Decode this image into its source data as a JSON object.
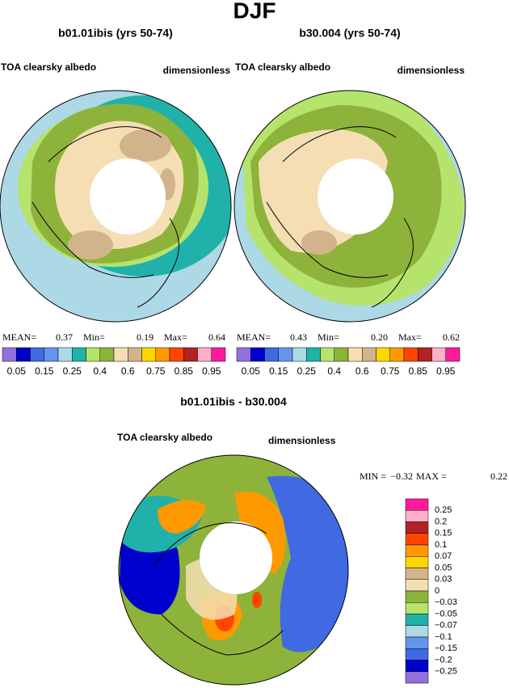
{
  "title": "DJF",
  "panels": [
    {
      "title": "b01.01ibis (yrs 50-74)",
      "variable": "TOA clearsky albedo",
      "units": "dimensionless",
      "stats": [
        {
          "label": "MEAN=",
          "value": 0.37
        },
        {
          "label": "Min=",
          "value": 0.19
        },
        {
          "label": "Max=",
          "value": 0.64
        }
      ]
    },
    {
      "title": "b30.004 (yrs 50-74)",
      "variable": "TOA clearsky albedo",
      "units": "dimensionless",
      "stats": [
        {
          "label": "MEAN=",
          "value": 0.43
        },
        {
          "label": "Min=",
          "value": {
            "value": 0.2,
            "label": "0.20"
          }
        },
        {
          "label": "Max=",
          "value": 0.62
        }
      ]
    }
  ],
  "colorbar": {
    "colors": [
      "#9370db",
      "#0000cd",
      "#4169e1",
      "#6495ed",
      "#add8e6",
      "#20b2aa",
      "#b5e36b",
      "#8db33a",
      "#f5deb3",
      "#d2b48c",
      "#ffd700",
      "#ff9900",
      "#ff4500",
      "#b22222",
      "#ffb0c8",
      "#ff1a9c"
    ],
    "levels": [
      0.05,
      0.15,
      0.25,
      0.4,
      0.6,
      0.75,
      0.85,
      0.95
    ]
  },
  "difference": {
    "title": "b01.01ibis - b30.004",
    "variable": "TOA clearsky albedo",
    "units": "dimensionless",
    "stats": [
      {
        "label": "MIN =",
        "value": {
          "value": -0.32,
          "label": "−0.32"
        }
      },
      {
        "label": "MAX =",
        "value": 0.22
      }
    ],
    "colorbar": {
      "colors": [
        "#ff1a9c",
        "#ffb0c8",
        "#b22222",
        "#ff4500",
        "#ff9900",
        "#ffd700",
        "#d2b48c",
        "#f5deb3",
        "#8db33a",
        "#b5e36b",
        "#20b2aa",
        "#add8e6",
        "#6495ed",
        "#4169e1",
        "#0000cd",
        "#9370db"
      ],
      "levels": [
        0.25,
        0.2,
        0.15,
        0.1,
        0.07,
        0.05,
        0.03,
        0,
        {
          "value": -0.03,
          "label": "−0.03"
        },
        {
          "value": -0.05,
          "label": "−0.05"
        },
        {
          "value": -0.07,
          "label": "−0.07"
        },
        {
          "value": -0.1,
          "label": "−0.1"
        },
        {
          "value": -0.15,
          "label": "−0.15"
        },
        {
          "value": -0.2,
          "label": "−0.2"
        },
        {
          "value": -0.25,
          "label": "−0.25"
        }
      ]
    }
  }
}
